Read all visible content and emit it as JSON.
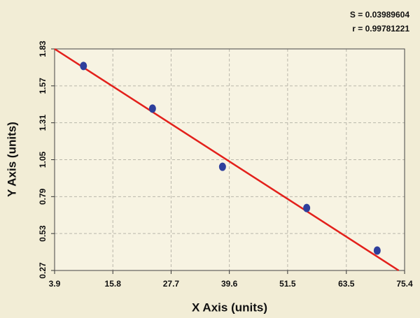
{
  "chart_data": {
    "type": "scatter",
    "annotations": [
      "S = 0.03989604",
      "r = 0.99781221"
    ],
    "x_label": "X Axis (units)",
    "y_label": "Y Axis (units)",
    "series": [
      {
        "color": "#2e3f9c",
        "x": [
          9.8,
          23.9,
          38.2,
          55.4,
          69.8
        ],
        "values": [
          1.71,
          1.41,
          1.0,
          0.71,
          0.41
        ]
      }
    ],
    "fit_line": {
      "color": "#e3201b",
      "x": [
        3.9,
        74.2
      ],
      "values": [
        1.83,
        0.27
      ]
    },
    "xlim": [
      3.9,
      75.4
    ],
    "ylim": [
      0.27,
      1.83
    ],
    "xticks": [
      3.9,
      15.8,
      27.7,
      39.6,
      51.5,
      63.5,
      75.4
    ],
    "yticks": [
      0.27,
      0.53,
      0.79,
      1.05,
      1.31,
      1.57,
      1.83
    ],
    "grid": true
  }
}
